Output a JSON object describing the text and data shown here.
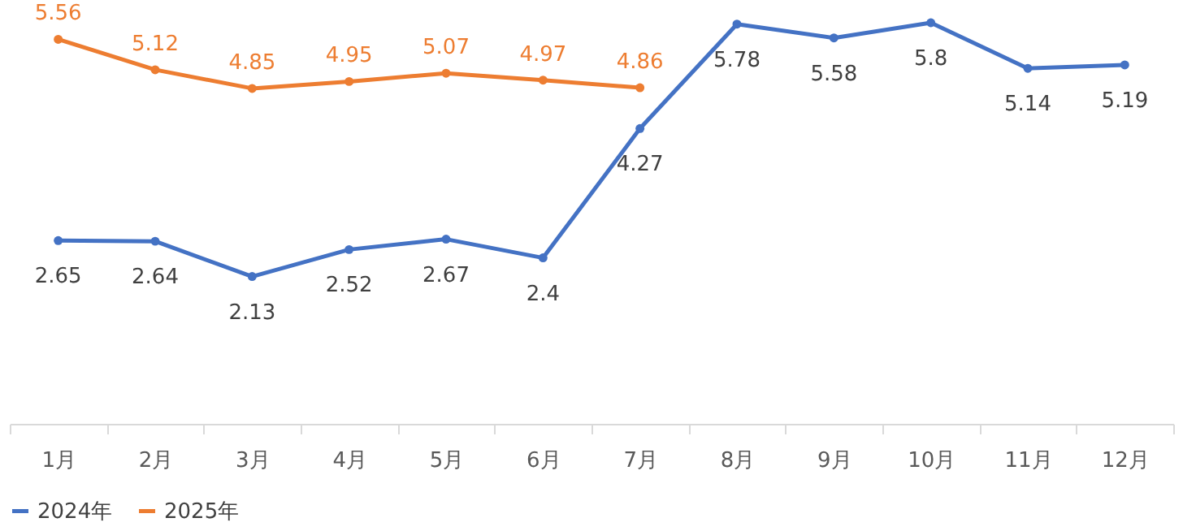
{
  "chart_data": {
    "type": "line",
    "categories": [
      "1月",
      "2月",
      "3月",
      "4月",
      "5月",
      "6月",
      "7月",
      "8月",
      "9月",
      "10月",
      "11月",
      "12月"
    ],
    "series": [
      {
        "name": "2024年",
        "color": "#4472c4",
        "values": [
          2.65,
          2.64,
          2.13,
          2.52,
          2.67,
          2.4,
          4.27,
          5.78,
          5.58,
          5.8,
          5.14,
          5.19
        ]
      },
      {
        "name": "2025年",
        "color": "#ed7d31",
        "values": [
          5.56,
          5.12,
          4.85,
          4.95,
          5.07,
          4.97,
          4.86,
          null,
          null,
          null,
          null,
          null
        ]
      }
    ],
    "tick_labels": "x",
    "data_labels": true,
    "legend": "bottom",
    "grid": false,
    "marker": "circle",
    "line_style": "solid"
  }
}
